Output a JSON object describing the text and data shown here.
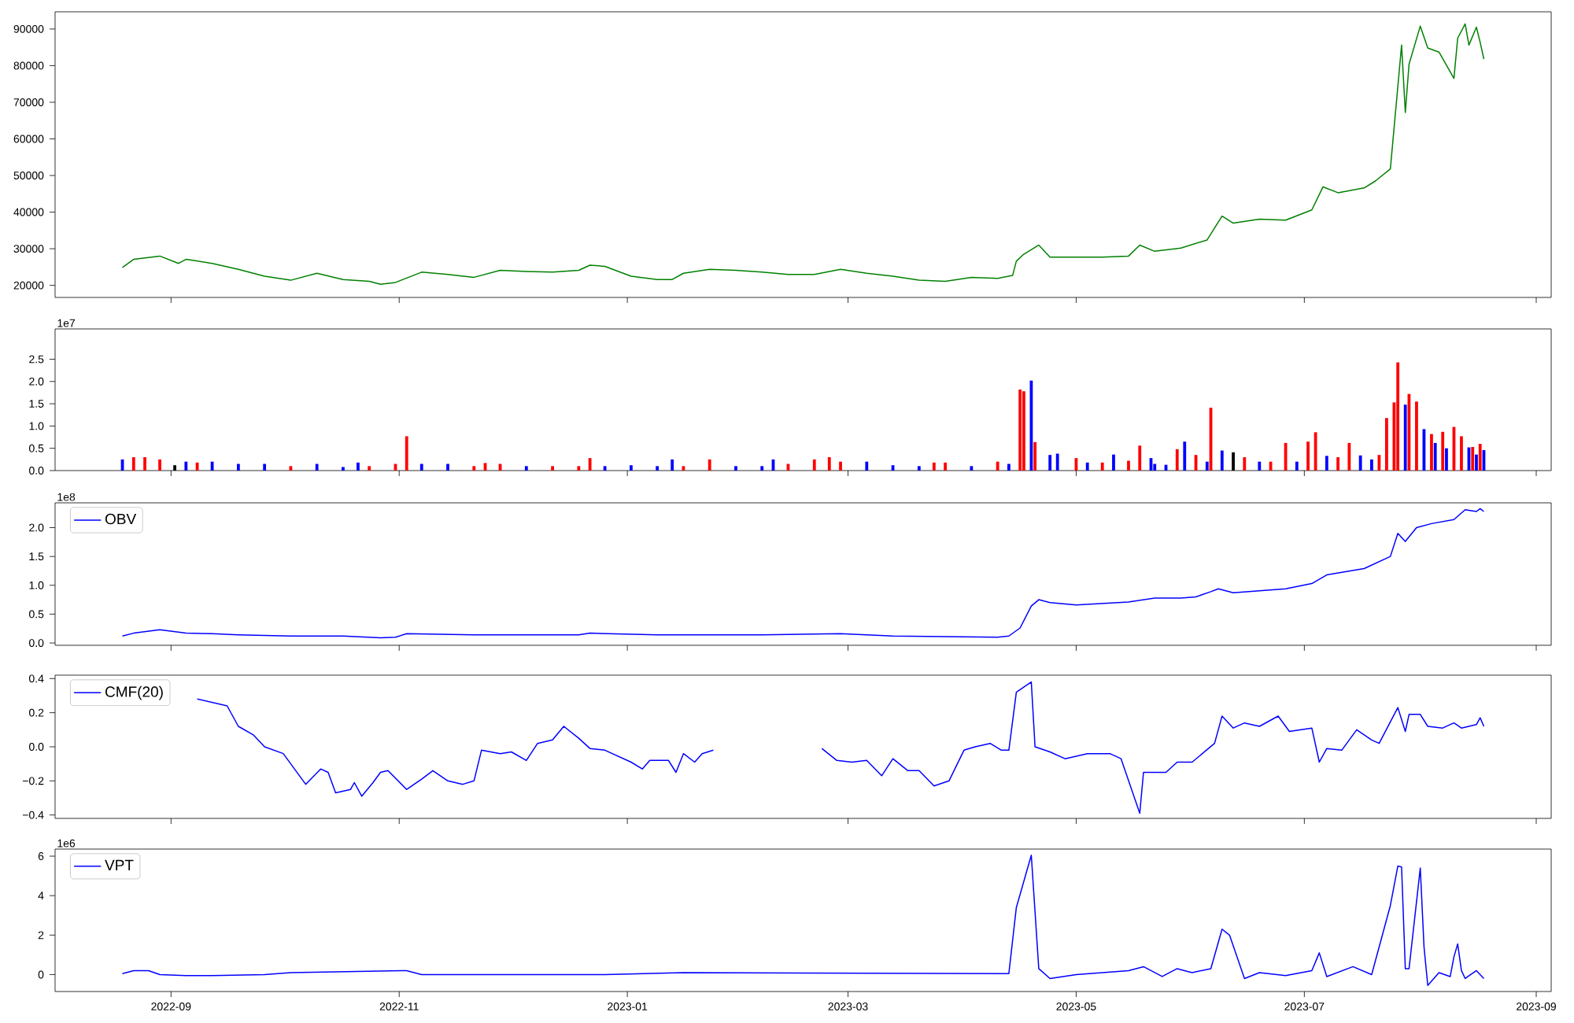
{
  "chart_data": [
    {
      "type": "line",
      "color": "#008000",
      "xlim": [
        "2022-08-01",
        "2023-09-05"
      ],
      "ylim": [
        16700,
        94700
      ],
      "tick_labels": "y",
      "xticks": [
        {
          "value": "2022-09-01",
          "label": null
        },
        {
          "value": "2022-11-01",
          "label": null
        },
        {
          "value": "2023-01-01",
          "label": null
        },
        {
          "value": "2023-03-01",
          "label": null
        },
        {
          "value": "2023-05-01",
          "label": null
        },
        {
          "value": "2023-07-01",
          "label": null
        },
        {
          "value": "2023-09-01",
          "label": null
        }
      ],
      "yticks": [
        20000,
        30000,
        40000,
        50000,
        60000,
        70000,
        80000,
        90000
      ],
      "x": [
        "2022-08-19",
        "2022-08-22",
        "2022-08-29",
        "2022-09-03",
        "2022-09-05",
        "2022-09-12",
        "2022-09-19",
        "2022-09-26",
        "2022-10-03",
        "2022-10-10",
        "2022-10-17",
        "2022-10-24",
        "2022-10-27",
        "2022-10-31",
        "2022-11-07",
        "2022-11-14",
        "2022-11-21",
        "2022-11-28",
        "2022-12-05",
        "2022-12-12",
        "2022-12-19",
        "2022-12-22",
        "2022-12-26",
        "2023-01-02",
        "2023-01-09",
        "2023-01-13",
        "2023-01-16",
        "2023-01-23",
        "2023-01-30",
        "2023-02-06",
        "2023-02-13",
        "2023-02-20",
        "2023-02-27",
        "2023-03-06",
        "2023-03-13",
        "2023-03-20",
        "2023-03-27",
        "2023-04-03",
        "2023-04-10",
        "2023-04-14",
        "2023-04-15",
        "2023-04-17",
        "2023-04-21",
        "2023-04-24",
        "2023-05-01",
        "2023-05-08",
        "2023-05-15",
        "2023-05-18",
        "2023-05-22",
        "2023-05-29",
        "2023-06-05",
        "2023-06-09",
        "2023-06-12",
        "2023-06-19",
        "2023-06-26",
        "2023-07-03",
        "2023-07-06",
        "2023-07-10",
        "2023-07-17",
        "2023-07-20",
        "2023-07-24",
        "2023-07-27",
        "2023-07-28",
        "2023-07-29",
        "2023-08-01",
        "2023-08-03",
        "2023-08-06",
        "2023-08-10",
        "2023-08-11",
        "2023-08-13",
        "2023-08-14",
        "2023-08-16",
        "2023-08-17",
        "2023-08-18"
      ],
      "values": [
        24900,
        27100,
        28000,
        26000,
        27100,
        26000,
        24400,
        22500,
        21400,
        23300,
        21600,
        21100,
        20300,
        20800,
        23600,
        23000,
        22200,
        24100,
        23800,
        23600,
        24100,
        25500,
        25200,
        22500,
        21600,
        21600,
        23300,
        24400,
        24100,
        23600,
        23000,
        23000,
        24400,
        23300,
        22500,
        21400,
        21100,
        22200,
        21900,
        22700,
        26600,
        28500,
        31000,
        27700,
        27700,
        27700,
        28000,
        31000,
        29300,
        30200,
        32400,
        38900,
        37000,
        38100,
        37800,
        40600,
        46900,
        45300,
        46600,
        48500,
        51800,
        85600,
        67200,
        80400,
        90800,
        84800,
        83700,
        76500,
        87500,
        91400,
        85600,
        90500,
        86400,
        81800
      ]
    },
    {
      "type": "bar",
      "xlim": [
        "2022-08-01",
        "2023-09-05"
      ],
      "ylim": [
        0,
        3.18
      ],
      "tick_labels": "y",
      "annotations": [
        "1e7"
      ],
      "xticks": [
        {
          "value": "2022-09-01",
          "label": null
        },
        {
          "value": "2022-11-01",
          "label": null
        },
        {
          "value": "2023-01-01",
          "label": null
        },
        {
          "value": "2023-03-01",
          "label": null
        },
        {
          "value": "2023-05-01",
          "label": null
        },
        {
          "value": "2023-07-01",
          "label": null
        },
        {
          "value": "2023-09-01",
          "label": null
        }
      ],
      "yticks": [
        {
          "value": 0,
          "label": "0.0"
        },
        {
          "value": 0.5,
          "label": "0.5"
        },
        {
          "value": 1,
          "label": "1.0"
        },
        {
          "value": 1.5,
          "label": "1.5"
        },
        {
          "value": 2,
          "label": "2.0"
        },
        {
          "value": 2.5,
          "label": "2.5"
        }
      ],
      "x": [
        "2022-08-19",
        "2022-08-22",
        "2022-08-25",
        "2022-08-29",
        "2022-09-02",
        "2022-09-05",
        "2022-09-08",
        "2022-09-12",
        "2022-09-19",
        "2022-09-26",
        "2022-10-03",
        "2022-10-10",
        "2022-10-17",
        "2022-10-21",
        "2022-10-24",
        "2022-10-31",
        "2022-11-03",
        "2022-11-07",
        "2022-11-14",
        "2022-11-21",
        "2022-11-24",
        "2022-11-28",
        "2022-12-05",
        "2022-12-12",
        "2022-12-19",
        "2022-12-22",
        "2022-12-26",
        "2023-01-02",
        "2023-01-09",
        "2023-01-13",
        "2023-01-16",
        "2023-01-23",
        "2023-01-30",
        "2023-02-06",
        "2023-02-09",
        "2023-02-13",
        "2023-02-20",
        "2023-02-24",
        "2023-02-27",
        "2023-03-06",
        "2023-03-13",
        "2023-03-20",
        "2023-03-24",
        "2023-03-27",
        "2023-04-03",
        "2023-04-10",
        "2023-04-13",
        "2023-04-16",
        "2023-04-17",
        "2023-04-19",
        "2023-04-20",
        "2023-04-24",
        "2023-04-26",
        "2023-05-01",
        "2023-05-04",
        "2023-05-08",
        "2023-05-11",
        "2023-05-15",
        "2023-05-18",
        "2023-05-21",
        "2023-05-22",
        "2023-05-25",
        "2023-05-28",
        "2023-05-30",
        "2023-06-02",
        "2023-06-05",
        "2023-06-06",
        "2023-06-09",
        "2023-06-12",
        "2023-06-15",
        "2023-06-19",
        "2023-06-22",
        "2023-06-26",
        "2023-06-29",
        "2023-07-02",
        "2023-07-04",
        "2023-07-07",
        "2023-07-10",
        "2023-07-13",
        "2023-07-16",
        "2023-07-19",
        "2023-07-21",
        "2023-07-23",
        "2023-07-25",
        "2023-07-26",
        "2023-07-28",
        "2023-07-29",
        "2023-07-31",
        "2023-08-02",
        "2023-08-04",
        "2023-08-05",
        "2023-08-07",
        "2023-08-08",
        "2023-08-10",
        "2023-08-12",
        "2023-08-14",
        "2023-08-15",
        "2023-08-16",
        "2023-08-17",
        "2023-08-18"
      ],
      "values": [
        0.25,
        0.3,
        0.3,
        0.25,
        0.12,
        0.2,
        0.18,
        0.2,
        0.15,
        0.15,
        0.1,
        0.15,
        0.08,
        0.18,
        0.1,
        0.15,
        0.77,
        0.15,
        0.15,
        0.1,
        0.17,
        0.15,
        0.1,
        0.1,
        0.1,
        0.28,
        0.1,
        0.12,
        0.1,
        0.25,
        0.1,
        0.25,
        0.1,
        0.1,
        0.25,
        0.15,
        0.25,
        0.3,
        0.2,
        0.2,
        0.12,
        0.1,
        0.18,
        0.18,
        0.1,
        0.2,
        0.15,
        1.82,
        1.78,
        2.02,
        0.64,
        0.35,
        0.38,
        0.28,
        0.18,
        0.18,
        0.36,
        0.22,
        0.56,
        0.28,
        0.15,
        0.13,
        0.48,
        0.65,
        0.35,
        0.2,
        1.41,
        0.45,
        0.41,
        0.3,
        0.2,
        0.2,
        0.62,
        0.2,
        0.65,
        0.86,
        0.33,
        0.3,
        0.62,
        0.34,
        0.25,
        0.35,
        1.18,
        1.53,
        2.43,
        1.48,
        1.72,
        1.55,
        0.93,
        0.82,
        0.62,
        0.87,
        0.5,
        0.98,
        0.77,
        0.52,
        0.53,
        0.36,
        0.6,
        0.46
      ],
      "colors": [
        "#0000ff",
        "#ff0000",
        "#ff0000",
        "#ff0000",
        "#000000",
        "#0000ff",
        "#ff0000",
        "#0000ff",
        "#0000ff",
        "#0000ff",
        "#ff0000",
        "#0000ff",
        "#0000ff",
        "#0000ff",
        "#ff0000",
        "#ff0000",
        "#ff0000",
        "#0000ff",
        "#0000ff",
        "#ff0000",
        "#ff0000",
        "#ff0000",
        "#0000ff",
        "#ff0000",
        "#ff0000",
        "#ff0000",
        "#0000ff",
        "#0000ff",
        "#0000ff",
        "#0000ff",
        "#ff0000",
        "#ff0000",
        "#0000ff",
        "#0000ff",
        "#0000ff",
        "#ff0000",
        "#ff0000",
        "#ff0000",
        "#ff0000",
        "#0000ff",
        "#0000ff",
        "#0000ff",
        "#ff0000",
        "#ff0000",
        "#0000ff",
        "#ff0000",
        "#0000ff",
        "#ff0000",
        "#ff0000",
        "#0000ff",
        "#ff0000",
        "#0000ff",
        "#0000ff",
        "#ff0000",
        "#0000ff",
        "#ff0000",
        "#0000ff",
        "#ff0000",
        "#ff0000",
        "#0000ff",
        "#0000ff",
        "#0000ff",
        "#ff0000",
        "#0000ff",
        "#ff0000",
        "#0000ff",
        "#ff0000",
        "#0000ff",
        "#000000",
        "#ff0000",
        "#0000ff",
        "#ff0000",
        "#ff0000",
        "#0000ff",
        "#ff0000",
        "#ff0000",
        "#0000ff",
        "#ff0000",
        "#ff0000",
        "#0000ff",
        "#0000ff",
        "#ff0000",
        "#ff0000",
        "#ff0000",
        "#ff0000",
        "#0000ff",
        "#ff0000",
        "#ff0000",
        "#0000ff",
        "#ff0000",
        "#0000ff",
        "#ff0000",
        "#0000ff",
        "#ff0000",
        "#ff0000",
        "#0000ff",
        "#ff0000",
        "#0000ff",
        "#ff0000",
        "#0000ff"
      ]
    },
    {
      "type": "line",
      "xlim": [
        "2022-08-01",
        "2023-09-05"
      ],
      "ylim": [
        -0.04,
        2.43
      ],
      "tick_labels": "y",
      "legend": "top left",
      "annotations": [
        "1e8"
      ],
      "xticks": [
        {
          "value": "2022-09-01",
          "label": null
        },
        {
          "value": "2022-11-01",
          "label": null
        },
        {
          "value": "2023-01-01",
          "label": null
        },
        {
          "value": "2023-03-01",
          "label": null
        },
        {
          "value": "2023-05-01",
          "label": null
        },
        {
          "value": "2023-07-01",
          "label": null
        },
        {
          "value": "2023-09-01",
          "label": null
        }
      ],
      "yticks": [
        {
          "value": 0,
          "label": "0.0"
        },
        {
          "value": 0.5,
          "label": "0.5"
        },
        {
          "value": 1,
          "label": "1.0"
        },
        {
          "value": 1.5,
          "label": "1.5"
        },
        {
          "value": 2,
          "label": "2.0"
        }
      ],
      "x": [
        "2022-08-19",
        "2022-08-22",
        "2022-08-29",
        "2022-09-05",
        "2022-09-12",
        "2022-09-19",
        "2022-10-03",
        "2022-10-17",
        "2022-10-27",
        "2022-10-31",
        "2022-11-03",
        "2022-11-21",
        "2022-12-19",
        "2022-12-22",
        "2023-01-09",
        "2023-02-06",
        "2023-02-27",
        "2023-03-13",
        "2023-04-10",
        "2023-04-13",
        "2023-04-16",
        "2023-04-19",
        "2023-04-21",
        "2023-04-24",
        "2023-05-01",
        "2023-05-15",
        "2023-05-22",
        "2023-05-29",
        "2023-06-02",
        "2023-06-06",
        "2023-06-08",
        "2023-06-12",
        "2023-06-26",
        "2023-07-03",
        "2023-07-07",
        "2023-07-17",
        "2023-07-24",
        "2023-07-26",
        "2023-07-28",
        "2023-07-31",
        "2023-08-04",
        "2023-08-10",
        "2023-08-13",
        "2023-08-16",
        "2023-08-17",
        "2023-08-18"
      ],
      "series": [
        {
          "name": "OBV",
          "color": "#0000ff",
          "values": [
            0.12,
            0.17,
            0.23,
            0.17,
            0.16,
            0.14,
            0.12,
            0.12,
            0.09,
            0.1,
            0.16,
            0.14,
            0.14,
            0.17,
            0.14,
            0.14,
            0.16,
            0.12,
            0.1,
            0.12,
            0.26,
            0.64,
            0.75,
            0.7,
            0.66,
            0.71,
            0.78,
            0.78,
            0.8,
            0.89,
            0.94,
            0.87,
            0.94,
            1.03,
            1.18,
            1.29,
            1.5,
            1.9,
            1.76,
            2.0,
            2.07,
            2.14,
            2.31,
            2.28,
            2.33,
            2.28
          ]
        }
      ]
    },
    {
      "type": "line",
      "xlim": [
        "2022-08-01",
        "2023-09-05"
      ],
      "ylim": [
        -0.42,
        0.42
      ],
      "tick_labels": "y",
      "legend": "top left",
      "xticks": [
        {
          "value": "2022-09-01",
          "label": null
        },
        {
          "value": "2022-11-01",
          "label": null
        },
        {
          "value": "2023-01-01",
          "label": null
        },
        {
          "value": "2023-03-01",
          "label": null
        },
        {
          "value": "2023-05-01",
          "label": null
        },
        {
          "value": "2023-07-01",
          "label": null
        },
        {
          "value": "2023-09-01",
          "label": null
        }
      ],
      "yticks": [
        {
          "value": -0.4,
          "label": "−0.4"
        },
        {
          "value": -0.2,
          "label": "−0.2"
        },
        {
          "value": 0,
          "label": "0.0"
        },
        {
          "value": 0.2,
          "label": "0.2"
        },
        {
          "value": 0.4,
          "label": "0.4"
        }
      ],
      "x": [
        "2022-09-08",
        "2022-09-16",
        "2022-09-19",
        "2022-09-23",
        "2022-09-26",
        "2022-10-01",
        "2022-10-05",
        "2022-10-07",
        "2022-10-11",
        "2022-10-13",
        "2022-10-15",
        "2022-10-19",
        "2022-10-20",
        "2022-10-22",
        "2022-10-25",
        "2022-10-27",
        "2022-10-29",
        "2022-11-03",
        "2022-11-07",
        "2022-11-10",
        "2022-11-14",
        "2022-11-18",
        "2022-11-21",
        "2022-11-23",
        "2022-11-28",
        "2022-12-01",
        "2022-12-05",
        "2022-12-08",
        "2022-12-12",
        "2022-12-15",
        "2022-12-19",
        "2022-12-22",
        "2022-12-26",
        "2023-01-02",
        "2023-01-05",
        "2023-01-07",
        "2023-01-12",
        "2023-01-14",
        "2023-01-16",
        "2023-01-19",
        "2023-01-21",
        "2023-01-24",
        "2023-02-08",
        "2023-02-22",
        "2023-02-26",
        "2023-03-02",
        "2023-03-06",
        "2023-03-10",
        "2023-03-13",
        "2023-03-17",
        "2023-03-20",
        "2023-03-24",
        "2023-03-28",
        "2023-04-01",
        "2023-04-04",
        "2023-04-08",
        "2023-04-11",
        "2023-04-13",
        "2023-04-15",
        "2023-04-19",
        "2023-04-20",
        "2023-04-24",
        "2023-04-28",
        "2023-05-04",
        "2023-05-10",
        "2023-05-13",
        "2023-05-18",
        "2023-05-19",
        "2023-05-22",
        "2023-05-25",
        "2023-05-28",
        "2023-06-01",
        "2023-06-07",
        "2023-06-09",
        "2023-06-12",
        "2023-06-15",
        "2023-06-19",
        "2023-06-24",
        "2023-06-27",
        "2023-07-03",
        "2023-07-05",
        "2023-07-07",
        "2023-07-11",
        "2023-07-15",
        "2023-07-19",
        "2023-07-21",
        "2023-07-26",
        "2023-07-28",
        "2023-07-29",
        "2023-08-01",
        "2023-08-03",
        "2023-08-07",
        "2023-08-10",
        "2023-08-12",
        "2023-08-16",
        "2023-08-17",
        "2023-08-18"
      ],
      "series": [
        {
          "name": "CMF(20)",
          "color": "#0000ff",
          "values": [
            0.28,
            0.24,
            0.12,
            0.07,
            0.0,
            -0.04,
            -0.16,
            -0.22,
            -0.13,
            -0.15,
            -0.27,
            -0.25,
            -0.21,
            -0.29,
            -0.21,
            -0.15,
            -0.14,
            -0.25,
            -0.19,
            -0.14,
            -0.2,
            -0.22,
            -0.2,
            -0.02,
            -0.04,
            -0.03,
            -0.08,
            0.02,
            0.04,
            0.12,
            0.05,
            -0.01,
            -0.02,
            -0.09,
            -0.13,
            -0.08,
            -0.08,
            -0.15,
            -0.04,
            -0.09,
            -0.04,
            -0.02,
            null,
            -0.01,
            -0.08,
            -0.09,
            -0.08,
            -0.17,
            -0.07,
            -0.14,
            -0.14,
            -0.23,
            -0.2,
            -0.02,
            0.0,
            0.02,
            -0.02,
            -0.02,
            0.32,
            0.38,
            0.0,
            -0.03,
            -0.07,
            -0.04,
            -0.04,
            -0.07,
            -0.39,
            -0.15,
            -0.15,
            -0.15,
            -0.09,
            -0.09,
            0.02,
            0.18,
            0.11,
            0.14,
            0.12,
            0.18,
            0.09,
            0.11,
            -0.09,
            -0.01,
            -0.02,
            0.1,
            0.04,
            0.02,
            0.23,
            0.09,
            0.19,
            0.19,
            0.12,
            0.11,
            0.14,
            0.11,
            0.13,
            0.17,
            0.12
          ]
        }
      ]
    },
    {
      "type": "line",
      "xlim": [
        "2022-08-01",
        "2023-09-05"
      ],
      "ylim": [
        -0.86,
        6.36
      ],
      "legend": "top left",
      "annotations": [
        "1e6"
      ],
      "xticks": [
        {
          "value": "2022-09-01",
          "label": "2022-09"
        },
        {
          "value": "2022-11-01",
          "label": "2022-11"
        },
        {
          "value": "2023-01-01",
          "label": "2023-01"
        },
        {
          "value": "2023-03-01",
          "label": "2023-03"
        },
        {
          "value": "2023-05-01",
          "label": "2023-05"
        },
        {
          "value": "2023-07-01",
          "label": "2023-07"
        },
        {
          "value": "2023-09-01",
          "label": "2023-09"
        }
      ],
      "yticks": [
        0,
        2,
        4,
        6
      ],
      "x": [
        "2022-08-19",
        "2022-08-22",
        "2022-08-26",
        "2022-08-29",
        "2022-09-05",
        "2022-09-12",
        "2022-09-26",
        "2022-10-03",
        "2022-11-03",
        "2022-11-07",
        "2022-12-26",
        "2023-01-16",
        "2023-04-13",
        "2023-04-15",
        "2023-04-19",
        "2023-04-21",
        "2023-04-24",
        "2023-05-01",
        "2023-05-08",
        "2023-05-15",
        "2023-05-19",
        "2023-05-24",
        "2023-05-28",
        "2023-06-01",
        "2023-06-06",
        "2023-06-09",
        "2023-06-11",
        "2023-06-15",
        "2023-06-19",
        "2023-06-26",
        "2023-07-03",
        "2023-07-05",
        "2023-07-07",
        "2023-07-14",
        "2023-07-19",
        "2023-07-24",
        "2023-07-26",
        "2023-07-27",
        "2023-07-28",
        "2023-07-29",
        "2023-08-01",
        "2023-08-02",
        "2023-08-03",
        "2023-08-06",
        "2023-08-09",
        "2023-08-10",
        "2023-08-11",
        "2023-08-12",
        "2023-08-13",
        "2023-08-16",
        "2023-08-18"
      ],
      "series": [
        {
          "name": "VPT",
          "color": "#0000ff",
          "values": [
            0.05,
            0.2,
            0.2,
            0.0,
            -0.05,
            -0.05,
            0.0,
            0.1,
            0.2,
            0.0,
            0.0,
            0.1,
            0.05,
            3.4,
            6.05,
            0.3,
            -0.2,
            0.0,
            0.1,
            0.2,
            0.4,
            -0.1,
            0.3,
            0.1,
            0.3,
            2.3,
            2.0,
            -0.2,
            0.1,
            -0.05,
            0.2,
            1.1,
            -0.1,
            0.4,
            0.0,
            3.5,
            5.5,
            5.45,
            0.3,
            0.3,
            5.4,
            1.4,
            -0.55,
            0.1,
            -0.1,
            0.9,
            1.55,
            0.2,
            -0.2,
            0.2,
            -0.2
          ]
        }
      ]
    }
  ]
}
